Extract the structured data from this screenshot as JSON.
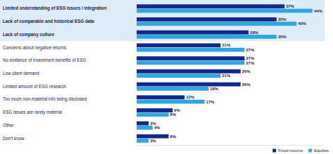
{
  "chart_data": {
    "type": "bar",
    "orientation": "horizontal",
    "categories": [
      "Limited understanding of ESG issues / integration",
      "Lack of comparable and historical ESG data",
      "Lack of company culture",
      "Concerns about negative returns",
      "No evidence of investment benefits of ESG",
      "Low client demand",
      "Limited amount of ESG research",
      "Too much non-material info being disclosed",
      "ESG issues are rarely material",
      "Other",
      "Don't know"
    ],
    "series": [
      {
        "name": "Fixed income",
        "color": "#14288c",
        "values": [
          37,
          35,
          28,
          21,
          27,
          26,
          26,
          12,
          9,
          3,
          8
        ],
        "value_labels": [
          "37%",
          "35%",
          "28%",
          "21%",
          "27%",
          "26%",
          "26%",
          "12%",
          "9%",
          "3%",
          "8%"
        ]
      },
      {
        "name": "Equities",
        "color": "#2ea7e0",
        "values": [
          44,
          40,
          35,
          27,
          27,
          21,
          18,
          17,
          8,
          4,
          3
        ],
        "value_labels": [
          "44%",
          "40%",
          "35%",
          "27%",
          "27%",
          "21%",
          "18%",
          "17%",
          "8%",
          "4%",
          "3%"
        ]
      }
    ],
    "xlim": [
      0,
      46
    ],
    "tick_labels": false,
    "grid": false,
    "data_labels": true,
    "legend": "lower right"
  }
}
